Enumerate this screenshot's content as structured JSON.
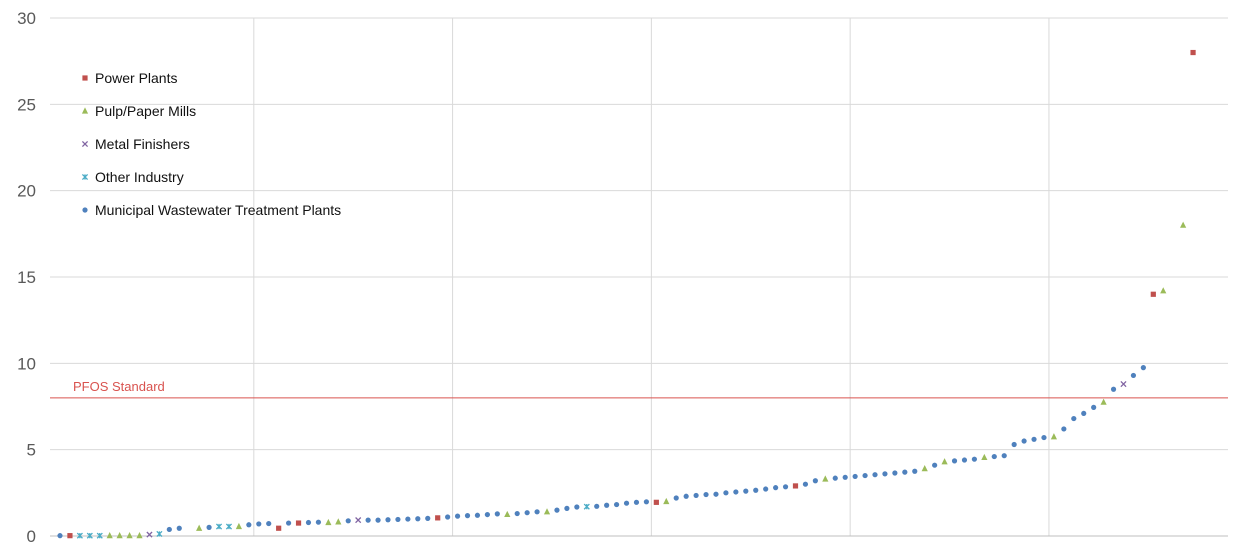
{
  "chart_data": {
    "type": "scatter",
    "ylim": [
      0,
      30
    ],
    "y_ticks": [
      "0",
      "5",
      "10",
      "15",
      "20",
      "25",
      "30"
    ],
    "x_categories_total": 116,
    "grid": {
      "horizontal": true,
      "vertical": true
    },
    "legend_position": "top-left",
    "reference_line": {
      "label": "PFOS Standard",
      "value": 8,
      "color": "#d9534f"
    },
    "series": [
      {
        "name": "Power Plants",
        "marker": "square",
        "color": "#c0504d",
        "points": [
          [
            2,
            0.02
          ],
          [
            23,
            0.45
          ],
          [
            25,
            0.75
          ],
          [
            39,
            1.05
          ],
          [
            61,
            1.95
          ],
          [
            75,
            2.9
          ],
          [
            111,
            14
          ],
          [
            115,
            28
          ]
        ]
      },
      {
        "name": "Pulp/Paper Mills",
        "marker": "triangle",
        "color": "#9bbb59",
        "points": [
          [
            6,
            0.02
          ],
          [
            7,
            0.02
          ],
          [
            8,
            0.02
          ],
          [
            9,
            0.02
          ],
          [
            15,
            0.45
          ],
          [
            19,
            0.55
          ],
          [
            28,
            0.78
          ],
          [
            29,
            0.82
          ],
          [
            46,
            1.25
          ],
          [
            50,
            1.4
          ],
          [
            62,
            2.0
          ],
          [
            78,
            3.3
          ],
          [
            88,
            3.9
          ],
          [
            90,
            4.3
          ],
          [
            94,
            4.55
          ],
          [
            101,
            5.75
          ],
          [
            106,
            7.75
          ],
          [
            112,
            14.2
          ],
          [
            114,
            18
          ]
        ]
      },
      {
        "name": "Metal Finishers",
        "marker": "x",
        "color": "#8064a2",
        "points": [
          [
            10,
            0.08
          ],
          [
            31,
            0.92
          ],
          [
            108,
            8.8
          ]
        ]
      },
      {
        "name": "Other Industry",
        "marker": "asterisk",
        "color": "#4bacc6",
        "points": [
          [
            3,
            0.02
          ],
          [
            4,
            0.02
          ],
          [
            5,
            0.02
          ],
          [
            11,
            0.12
          ],
          [
            17,
            0.55
          ],
          [
            18,
            0.55
          ],
          [
            54,
            1.7
          ]
        ]
      },
      {
        "name": "Municipal Wastewater Treatment Plants",
        "marker": "dot",
        "color": "#4f81bd",
        "points": [
          [
            1,
            0.02
          ],
          [
            12,
            0.38
          ],
          [
            13,
            0.45
          ],
          [
            16,
            0.5
          ],
          [
            20,
            0.65
          ],
          [
            21,
            0.7
          ],
          [
            22,
            0.72
          ],
          [
            24,
            0.75
          ],
          [
            26,
            0.78
          ],
          [
            27,
            0.8
          ],
          [
            30,
            0.88
          ],
          [
            32,
            0.92
          ],
          [
            33,
            0.92
          ],
          [
            34,
            0.94
          ],
          [
            35,
            0.96
          ],
          [
            36,
            0.98
          ],
          [
            37,
            1.0
          ],
          [
            38,
            1.02
          ],
          [
            40,
            1.1
          ],
          [
            41,
            1.15
          ],
          [
            42,
            1.18
          ],
          [
            43,
            1.2
          ],
          [
            44,
            1.24
          ],
          [
            45,
            1.28
          ],
          [
            47,
            1.3
          ],
          [
            48,
            1.35
          ],
          [
            49,
            1.4
          ],
          [
            51,
            1.5
          ],
          [
            52,
            1.6
          ],
          [
            53,
            1.68
          ],
          [
            55,
            1.72
          ],
          [
            56,
            1.78
          ],
          [
            57,
            1.82
          ],
          [
            58,
            1.9
          ],
          [
            59,
            1.95
          ],
          [
            60,
            1.98
          ],
          [
            63,
            2.2
          ],
          [
            64,
            2.3
          ],
          [
            65,
            2.35
          ],
          [
            66,
            2.4
          ],
          [
            67,
            2.42
          ],
          [
            68,
            2.5
          ],
          [
            69,
            2.55
          ],
          [
            70,
            2.6
          ],
          [
            71,
            2.65
          ],
          [
            72,
            2.72
          ],
          [
            73,
            2.8
          ],
          [
            74,
            2.85
          ],
          [
            76,
            3.0
          ],
          [
            77,
            3.2
          ],
          [
            79,
            3.35
          ],
          [
            80,
            3.4
          ],
          [
            81,
            3.45
          ],
          [
            82,
            3.5
          ],
          [
            83,
            3.55
          ],
          [
            84,
            3.6
          ],
          [
            85,
            3.65
          ],
          [
            86,
            3.7
          ],
          [
            87,
            3.75
          ],
          [
            89,
            4.1
          ],
          [
            91,
            4.35
          ],
          [
            92,
            4.4
          ],
          [
            93,
            4.45
          ],
          [
            95,
            4.6
          ],
          [
            96,
            4.65
          ],
          [
            97,
            5.3
          ],
          [
            98,
            5.5
          ],
          [
            99,
            5.6
          ],
          [
            100,
            5.7
          ],
          [
            102,
            6.2
          ],
          [
            103,
            6.8
          ],
          [
            104,
            7.1
          ],
          [
            105,
            7.45
          ],
          [
            107,
            8.5
          ],
          [
            109,
            9.3
          ],
          [
            110,
            9.75
          ]
        ]
      }
    ]
  }
}
